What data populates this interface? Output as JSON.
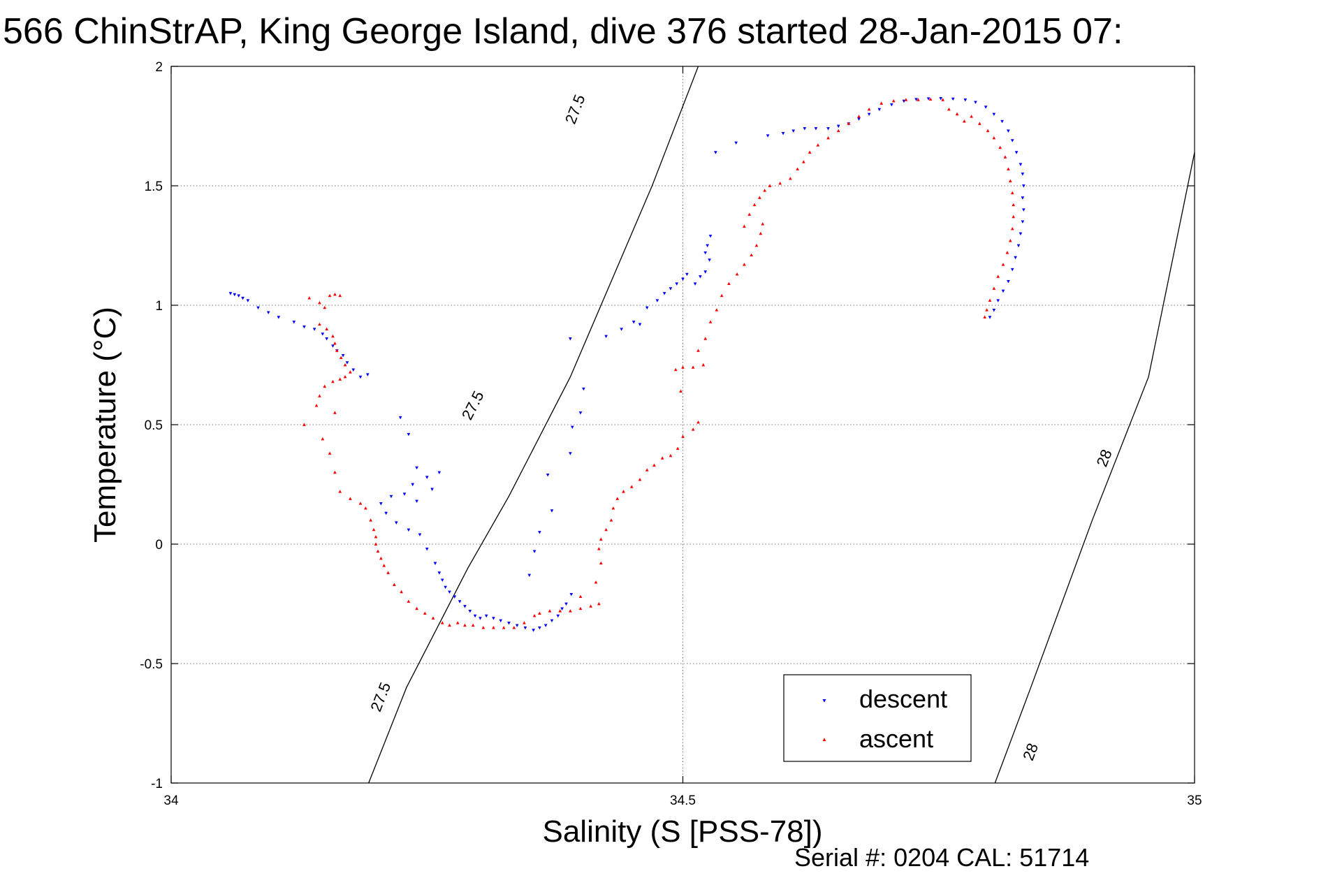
{
  "chart_data": {
    "type": "scatter",
    "title": "566 ChinStrAP, King George Island, dive 376 started 28-Jan-2015 07:",
    "xlabel": "Salinity (S [PSS-78])",
    "ylabel": "Temperature (°C)",
    "footer": "Serial #: 0204  CAL: 51714",
    "xlim": [
      34,
      35
    ],
    "ylim": [
      -1,
      2
    ],
    "xticks": [
      34,
      34.5,
      35
    ],
    "xtick_labels": [
      "34",
      "34.5",
      "35"
    ],
    "yticks": [
      -1,
      -0.5,
      0,
      0.5,
      1,
      1.5,
      2
    ],
    "ytick_labels": [
      "-1",
      "-0.5",
      "0",
      "0.5",
      "1",
      "1.5",
      "2"
    ],
    "grid": true,
    "legend_position": "bottom-right",
    "contours": [
      {
        "label": "27.5",
        "points": [
          [
            34.193,
            -1.0
          ],
          [
            34.23,
            -0.6
          ],
          [
            34.29,
            -0.1
          ],
          [
            34.33,
            0.2
          ],
          [
            34.39,
            0.7
          ],
          [
            34.44,
            1.2
          ],
          [
            34.47,
            1.5
          ],
          [
            34.515,
            2.0
          ]
        ],
        "label_positions": [
          [
            34.205,
            -0.64
          ],
          [
            34.295,
            0.58
          ],
          [
            34.395,
            1.82
          ]
        ]
      },
      {
        "label": "28",
        "points": [
          [
            34.805,
            -1.0
          ],
          [
            34.84,
            -0.6
          ],
          [
            34.9,
            0.1
          ],
          [
            34.955,
            0.7
          ],
          [
            35.0,
            1.64
          ]
        ],
        "label_positions": [
          [
            34.84,
            -0.87
          ],
          [
            34.912,
            0.36
          ]
        ]
      }
    ],
    "series": [
      {
        "name": "descent",
        "color": "#0000ff",
        "marker": "triangle-down",
        "points": [
          [
            34.058,
            1.05
          ],
          [
            34.062,
            1.045
          ],
          [
            34.066,
            1.04
          ],
          [
            34.07,
            1.03
          ],
          [
            34.075,
            1.02
          ],
          [
            34.085,
            0.99
          ],
          [
            34.095,
            0.97
          ],
          [
            34.105,
            0.95
          ],
          [
            34.12,
            0.93
          ],
          [
            34.13,
            0.91
          ],
          [
            34.14,
            0.9
          ],
          [
            34.148,
            0.88
          ],
          [
            34.152,
            0.86
          ],
          [
            34.158,
            0.83
          ],
          [
            34.162,
            0.81
          ],
          [
            34.168,
            0.79
          ],
          [
            34.172,
            0.76
          ],
          [
            34.178,
            0.73
          ],
          [
            34.185,
            0.7
          ],
          [
            34.192,
            0.71
          ],
          [
            34.224,
            0.53
          ],
          [
            34.232,
            0.46
          ],
          [
            34.24,
            0.32
          ],
          [
            34.25,
            0.28
          ],
          [
            34.236,
            0.25
          ],
          [
            34.228,
            0.21
          ],
          [
            34.215,
            0.2
          ],
          [
            34.205,
            0.17
          ],
          [
            34.21,
            0.13
          ],
          [
            34.22,
            0.09
          ],
          [
            34.232,
            0.06
          ],
          [
            34.24,
            0.18
          ],
          [
            34.255,
            0.23
          ],
          [
            34.262,
            0.3
          ],
          [
            34.243,
            0.04
          ],
          [
            34.25,
            -0.02
          ],
          [
            34.258,
            -0.08
          ],
          [
            34.262,
            -0.12
          ],
          [
            34.265,
            -0.15
          ],
          [
            34.268,
            -0.18
          ],
          [
            34.272,
            -0.2
          ],
          [
            34.277,
            -0.22
          ],
          [
            34.282,
            -0.24
          ],
          [
            34.287,
            -0.26
          ],
          [
            34.292,
            -0.28
          ],
          [
            34.297,
            -0.3
          ],
          [
            34.302,
            -0.31
          ],
          [
            34.308,
            -0.3
          ],
          [
            34.315,
            -0.31
          ],
          [
            34.322,
            -0.32
          ],
          [
            34.33,
            -0.33
          ],
          [
            34.338,
            -0.34
          ],
          [
            34.346,
            -0.35
          ],
          [
            34.354,
            -0.36
          ],
          [
            34.36,
            -0.35
          ],
          [
            34.366,
            -0.34
          ],
          [
            34.372,
            -0.32
          ],
          [
            34.378,
            -0.3
          ],
          [
            34.382,
            -0.27
          ],
          [
            34.386,
            -0.25
          ],
          [
            34.391,
            -0.21
          ],
          [
            34.35,
            -0.13
          ],
          [
            34.355,
            -0.03
          ],
          [
            34.36,
            0.05
          ],
          [
            34.372,
            0.14
          ],
          [
            34.368,
            0.29
          ],
          [
            34.39,
            0.38
          ],
          [
            34.392,
            0.49
          ],
          [
            34.4,
            0.55
          ],
          [
            34.403,
            0.65
          ],
          [
            34.39,
            0.86
          ],
          [
            34.425,
            0.87
          ],
          [
            34.44,
            0.9
          ],
          [
            34.452,
            0.93
          ],
          [
            34.458,
            0.92
          ],
          [
            34.465,
            0.99
          ],
          [
            34.475,
            1.02
          ],
          [
            34.482,
            1.05
          ],
          [
            34.488,
            1.07
          ],
          [
            34.494,
            1.09
          ],
          [
            34.5,
            1.11
          ],
          [
            34.504,
            1.13
          ],
          [
            34.512,
            1.09
          ],
          [
            34.517,
            1.12
          ],
          [
            34.522,
            1.14
          ],
          [
            34.526,
            1.19
          ],
          [
            34.522,
            1.22
          ],
          [
            34.524,
            1.25
          ],
          [
            34.527,
            1.29
          ],
          [
            34.532,
            1.64
          ],
          [
            34.552,
            1.68
          ],
          [
            34.583,
            1.71
          ],
          [
            34.598,
            1.72
          ],
          [
            34.608,
            1.73
          ],
          [
            34.619,
            1.74
          ],
          [
            34.63,
            1.74
          ],
          [
            34.642,
            1.74
          ],
          [
            34.652,
            1.75
          ],
          [
            34.662,
            1.76
          ],
          [
            34.672,
            1.78
          ],
          [
            34.682,
            1.8
          ],
          [
            34.692,
            1.82
          ],
          [
            34.704,
            1.84
          ],
          [
            34.716,
            1.855
          ],
          [
            34.728,
            1.862
          ],
          [
            34.74,
            1.865
          ],
          [
            34.752,
            1.866
          ],
          [
            34.764,
            1.864
          ],
          [
            34.776,
            1.86
          ],
          [
            34.786,
            1.85
          ],
          [
            34.796,
            1.83
          ],
          [
            34.804,
            1.8
          ],
          [
            34.812,
            1.77
          ],
          [
            34.818,
            1.73
          ],
          [
            34.822,
            1.69
          ],
          [
            34.826,
            1.64
          ],
          [
            34.83,
            1.59
          ],
          [
            34.832,
            1.55
          ],
          [
            34.833,
            1.5
          ],
          [
            34.832,
            1.45
          ],
          [
            34.833,
            1.4
          ],
          [
            34.832,
            1.35
          ],
          [
            34.83,
            1.3
          ],
          [
            34.828,
            1.25
          ],
          [
            34.825,
            1.2
          ],
          [
            34.822,
            1.15
          ],
          [
            34.818,
            1.1
          ],
          [
            34.813,
            1.06
          ],
          [
            34.808,
            1.02
          ],
          [
            34.804,
            0.98
          ],
          [
            34.8,
            0.95
          ]
        ]
      },
      {
        "name": "ascent",
        "color": "#ff0000",
        "marker": "triangle-up",
        "points": [
          [
            34.135,
            1.03
          ],
          [
            34.145,
            1.01
          ],
          [
            34.15,
            0.99
          ],
          [
            34.155,
            1.04
          ],
          [
            34.16,
            1.045
          ],
          [
            34.165,
            1.04
          ],
          [
            34.145,
            0.92
          ],
          [
            34.152,
            0.9
          ],
          [
            34.158,
            0.87
          ],
          [
            34.16,
            0.84
          ],
          [
            34.162,
            0.81
          ],
          [
            34.166,
            0.78
          ],
          [
            34.17,
            0.75
          ],
          [
            34.175,
            0.72
          ],
          [
            34.17,
            0.7
          ],
          [
            34.165,
            0.69
          ],
          [
            34.158,
            0.68
          ],
          [
            34.15,
            0.66
          ],
          [
            34.145,
            0.62
          ],
          [
            34.142,
            0.58
          ],
          [
            34.16,
            0.55
          ],
          [
            34.13,
            0.5
          ],
          [
            34.148,
            0.44
          ],
          [
            34.155,
            0.38
          ],
          [
            34.16,
            0.3
          ],
          [
            34.165,
            0.22
          ],
          [
            34.175,
            0.19
          ],
          [
            34.185,
            0.17
          ],
          [
            34.19,
            0.15
          ],
          [
            34.195,
            0.1
          ],
          [
            34.198,
            0.06
          ],
          [
            34.2,
            0.03
          ],
          [
            34.2,
            0.0
          ],
          [
            34.202,
            -0.03
          ],
          [
            34.205,
            -0.06
          ],
          [
            34.208,
            -0.09
          ],
          [
            34.212,
            -0.12
          ],
          [
            34.218,
            -0.17
          ],
          [
            34.225,
            -0.2
          ],
          [
            34.232,
            -0.24
          ],
          [
            34.24,
            -0.27
          ],
          [
            34.248,
            -0.29
          ],
          [
            34.256,
            -0.31
          ],
          [
            34.265,
            -0.33
          ],
          [
            34.272,
            -0.34
          ],
          [
            34.28,
            -0.33
          ],
          [
            34.287,
            -0.34
          ],
          [
            34.295,
            -0.34
          ],
          [
            34.305,
            -0.35
          ],
          [
            34.315,
            -0.35
          ],
          [
            34.325,
            -0.35
          ],
          [
            34.335,
            -0.35
          ],
          [
            34.345,
            -0.33
          ],
          [
            34.355,
            -0.3
          ],
          [
            34.36,
            -0.29
          ],
          [
            34.37,
            -0.28
          ],
          [
            34.38,
            -0.28
          ],
          [
            34.39,
            -0.28
          ],
          [
            34.4,
            -0.27
          ],
          [
            34.41,
            -0.26
          ],
          [
            34.418,
            -0.25
          ],
          [
            34.4,
            -0.22
          ],
          [
            34.415,
            -0.16
          ],
          [
            34.42,
            -0.08
          ],
          [
            34.418,
            -0.02
          ],
          [
            34.42,
            0.02
          ],
          [
            34.425,
            0.06
          ],
          [
            34.43,
            0.1
          ],
          [
            34.432,
            0.15
          ],
          [
            34.436,
            0.19
          ],
          [
            34.442,
            0.22
          ],
          [
            34.45,
            0.24
          ],
          [
            34.458,
            0.27
          ],
          [
            34.465,
            0.31
          ],
          [
            34.472,
            0.33
          ],
          [
            34.48,
            0.36
          ],
          [
            34.488,
            0.37
          ],
          [
            34.495,
            0.4
          ],
          [
            34.5,
            0.45
          ],
          [
            34.51,
            0.48
          ],
          [
            34.515,
            0.51
          ],
          [
            34.493,
            0.73
          ],
          [
            34.5,
            0.74
          ],
          [
            34.51,
            0.74
          ],
          [
            34.52,
            0.75
          ],
          [
            34.498,
            0.64
          ],
          [
            34.515,
            0.81
          ],
          [
            34.522,
            0.86
          ],
          [
            34.527,
            0.93
          ],
          [
            34.533,
            0.98
          ],
          [
            34.538,
            1.04
          ],
          [
            34.545,
            1.09
          ],
          [
            34.553,
            1.13
          ],
          [
            34.56,
            1.17
          ],
          [
            34.567,
            1.21
          ],
          [
            34.572,
            1.25
          ],
          [
            34.576,
            1.3
          ],
          [
            34.578,
            1.34
          ],
          [
            34.56,
            1.33
          ],
          [
            34.565,
            1.38
          ],
          [
            34.57,
            1.42
          ],
          [
            34.575,
            1.45
          ],
          [
            34.58,
            1.48
          ],
          [
            34.585,
            1.5
          ],
          [
            34.595,
            1.51
          ],
          [
            34.605,
            1.53
          ],
          [
            34.612,
            1.57
          ],
          [
            34.618,
            1.6
          ],
          [
            34.624,
            1.64
          ],
          [
            34.632,
            1.67
          ],
          [
            34.642,
            1.7
          ],
          [
            34.652,
            1.73
          ],
          [
            34.662,
            1.76
          ],
          [
            34.672,
            1.79
          ],
          [
            34.682,
            1.82
          ],
          [
            34.694,
            1.845
          ],
          [
            34.706,
            1.855
          ],
          [
            34.718,
            1.86
          ],
          [
            34.73,
            1.86
          ],
          [
            34.742,
            1.862
          ],
          [
            34.754,
            1.86
          ],
          [
            34.76,
            1.82
          ],
          [
            34.768,
            1.8
          ],
          [
            34.775,
            1.77
          ],
          [
            34.782,
            1.79
          ],
          [
            34.79,
            1.76
          ],
          [
            34.798,
            1.73
          ],
          [
            34.804,
            1.7
          ],
          [
            34.81,
            1.66
          ],
          [
            34.815,
            1.62
          ],
          [
            34.818,
            1.57
          ],
          [
            34.82,
            1.52
          ],
          [
            34.822,
            1.47
          ],
          [
            34.823,
            1.42
          ],
          [
            34.823,
            1.37
          ],
          [
            34.822,
            1.32
          ],
          [
            34.82,
            1.27
          ],
          [
            34.817,
            1.22
          ],
          [
            34.813,
            1.17
          ],
          [
            34.808,
            1.12
          ],
          [
            34.804,
            1.07
          ],
          [
            34.8,
            1.02
          ],
          [
            34.797,
            0.98
          ],
          [
            34.795,
            0.95
          ]
        ]
      }
    ]
  }
}
